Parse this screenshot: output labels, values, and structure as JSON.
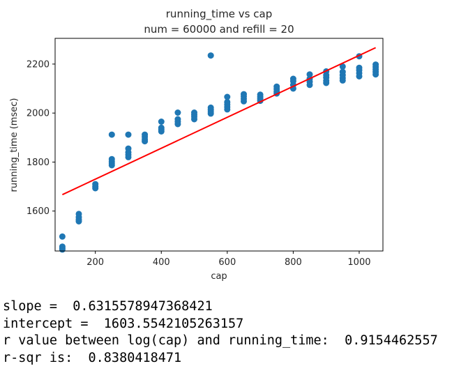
{
  "chart_data": {
    "type": "scatter",
    "title": "running_time vs cap",
    "subtitle": "num = 60000 and refill = 20",
    "xlabel": "cap",
    "ylabel": "running_time (msec)",
    "xlim": [
      78,
      1072
    ],
    "ylim": [
      1437,
      2305
    ],
    "xticks": [
      200,
      400,
      600,
      800,
      1000
    ],
    "yticks": [
      1600,
      1800,
      2000,
      2200
    ],
    "grid": false,
    "point_color": "#1f77b4",
    "line_color": "#ff0000",
    "points": [
      {
        "x": 100,
        "y": 1496
      },
      {
        "x": 100,
        "y": 1455
      },
      {
        "x": 100,
        "y": 1448
      },
      {
        "x": 100,
        "y": 1443
      },
      {
        "x": 150,
        "y": 1588
      },
      {
        "x": 150,
        "y": 1575
      },
      {
        "x": 150,
        "y": 1565
      },
      {
        "x": 150,
        "y": 1558
      },
      {
        "x": 200,
        "y": 1710
      },
      {
        "x": 200,
        "y": 1700
      },
      {
        "x": 200,
        "y": 1693
      },
      {
        "x": 250,
        "y": 1912
      },
      {
        "x": 250,
        "y": 1812
      },
      {
        "x": 250,
        "y": 1803
      },
      {
        "x": 250,
        "y": 1796
      },
      {
        "x": 250,
        "y": 1787
      },
      {
        "x": 300,
        "y": 1912
      },
      {
        "x": 300,
        "y": 1855
      },
      {
        "x": 300,
        "y": 1840
      },
      {
        "x": 300,
        "y": 1830
      },
      {
        "x": 300,
        "y": 1820
      },
      {
        "x": 350,
        "y": 1912
      },
      {
        "x": 350,
        "y": 1903
      },
      {
        "x": 350,
        "y": 1893
      },
      {
        "x": 350,
        "y": 1885
      },
      {
        "x": 400,
        "y": 1965
      },
      {
        "x": 400,
        "y": 1940
      },
      {
        "x": 400,
        "y": 1933
      },
      {
        "x": 400,
        "y": 1925
      },
      {
        "x": 450,
        "y": 2002
      },
      {
        "x": 450,
        "y": 1975
      },
      {
        "x": 450,
        "y": 1965
      },
      {
        "x": 450,
        "y": 1955
      },
      {
        "x": 500,
        "y": 2002
      },
      {
        "x": 500,
        "y": 1993
      },
      {
        "x": 500,
        "y": 1985
      },
      {
        "x": 500,
        "y": 1975
      },
      {
        "x": 550,
        "y": 2235
      },
      {
        "x": 550,
        "y": 2022
      },
      {
        "x": 550,
        "y": 2013
      },
      {
        "x": 550,
        "y": 2005
      },
      {
        "x": 550,
        "y": 1998
      },
      {
        "x": 600,
        "y": 2066
      },
      {
        "x": 600,
        "y": 2045
      },
      {
        "x": 600,
        "y": 2035
      },
      {
        "x": 600,
        "y": 2025
      },
      {
        "x": 600,
        "y": 2015
      },
      {
        "x": 650,
        "y": 2077
      },
      {
        "x": 650,
        "y": 2068
      },
      {
        "x": 650,
        "y": 2058
      },
      {
        "x": 650,
        "y": 2048
      },
      {
        "x": 700,
        "y": 2075
      },
      {
        "x": 700,
        "y": 2066
      },
      {
        "x": 700,
        "y": 2058
      },
      {
        "x": 700,
        "y": 2050
      },
      {
        "x": 750,
        "y": 2108
      },
      {
        "x": 750,
        "y": 2098
      },
      {
        "x": 750,
        "y": 2088
      },
      {
        "x": 750,
        "y": 2080
      },
      {
        "x": 800,
        "y": 2140
      },
      {
        "x": 800,
        "y": 2130
      },
      {
        "x": 800,
        "y": 2115
      },
      {
        "x": 800,
        "y": 2100
      },
      {
        "x": 850,
        "y": 2158
      },
      {
        "x": 850,
        "y": 2140
      },
      {
        "x": 850,
        "y": 2128
      },
      {
        "x": 850,
        "y": 2115
      },
      {
        "x": 900,
        "y": 2170
      },
      {
        "x": 900,
        "y": 2155
      },
      {
        "x": 900,
        "y": 2145
      },
      {
        "x": 900,
        "y": 2132
      },
      {
        "x": 900,
        "y": 2123
      },
      {
        "x": 950,
        "y": 2190
      },
      {
        "x": 950,
        "y": 2168
      },
      {
        "x": 950,
        "y": 2155
      },
      {
        "x": 950,
        "y": 2143
      },
      {
        "x": 950,
        "y": 2133
      },
      {
        "x": 1000,
        "y": 2232
      },
      {
        "x": 1000,
        "y": 2185
      },
      {
        "x": 1000,
        "y": 2175
      },
      {
        "x": 1000,
        "y": 2163
      },
      {
        "x": 1000,
        "y": 2150
      },
      {
        "x": 1050,
        "y": 2198
      },
      {
        "x": 1050,
        "y": 2188
      },
      {
        "x": 1050,
        "y": 2178
      },
      {
        "x": 1050,
        "y": 2168
      },
      {
        "x": 1050,
        "y": 2158
      }
    ],
    "fit_line": {
      "x": [
        100,
        1050
      ],
      "y": [
        1667,
        2267
      ]
    }
  },
  "output_lines": [
    "slope =  0.6315578947368421",
    "intercept =  1603.5542105263157",
    "r value between log(cap) and running_time:  0.9154462557",
    "r-sqr is:  0.8380418471"
  ]
}
